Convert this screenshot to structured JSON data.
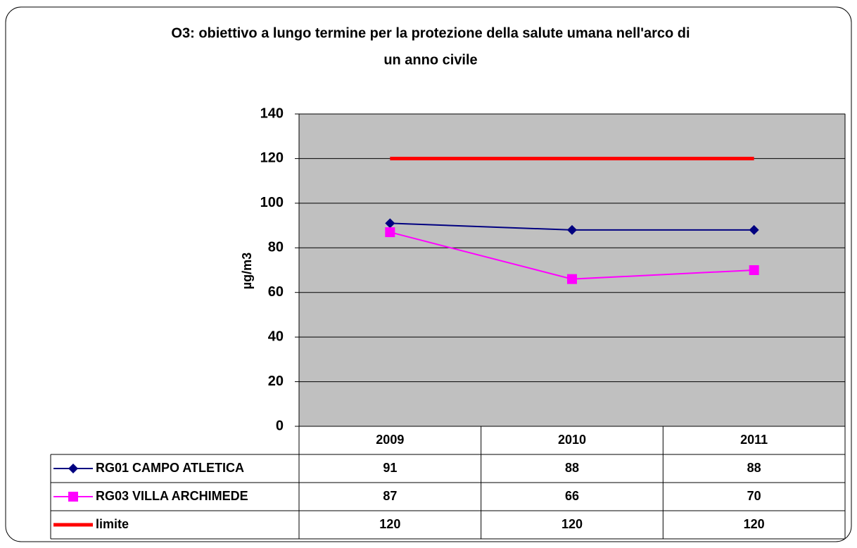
{
  "chart_data": {
    "type": "line",
    "title": "O3: obiettivo a lungo termine per la protezione della salute umana nell'arco di",
    "subtitle": "un anno civile",
    "y_label": "µg/m3",
    "categories": [
      "2009",
      "2010",
      "2011"
    ],
    "series": [
      {
        "name": "RG01 CAMPO ATLETICA",
        "color": "#000080",
        "marker": "diamond",
        "values": [
          91,
          88,
          88
        ]
      },
      {
        "name": "RG03 VILLA ARCHIMEDE",
        "color": "#ff00ff",
        "marker": "square",
        "values": [
          87,
          66,
          70
        ]
      },
      {
        "name": "limite",
        "color": "#ff0000",
        "marker": "none",
        "values": [
          120,
          120,
          120
        ]
      }
    ],
    "ylim": [
      0,
      140
    ],
    "yticks": [
      0,
      20,
      40,
      60,
      80,
      100,
      120,
      140
    ],
    "grid": true
  }
}
